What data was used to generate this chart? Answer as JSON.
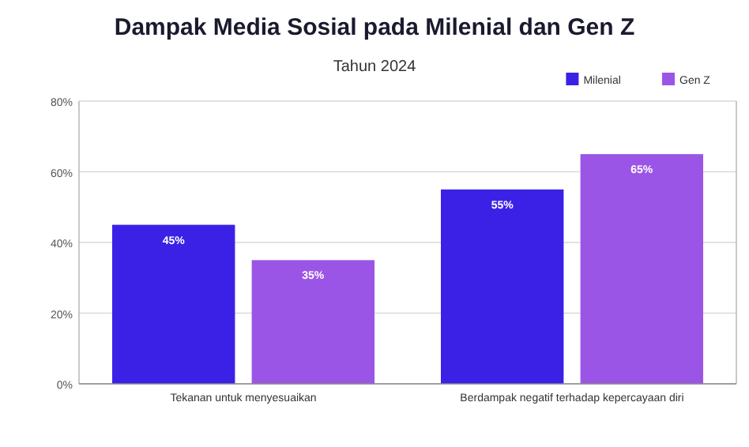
{
  "chart_data": {
    "type": "bar",
    "title": "Dampak Media Sosial pada Milenial dan Gen Z",
    "subtitle": "Tahun 2024",
    "categories": [
      "Tekanan untuk menyesuaikan",
      "Berdampak negatif terhadap kepercayaan diri"
    ],
    "series": [
      {
        "name": "Milenial",
        "color": "#3b21e6",
        "values": [
          45,
          55
        ],
        "value_labels": [
          "45%",
          "55%"
        ]
      },
      {
        "name": "Gen Z",
        "color": "#9b55e6",
        "values": [
          35,
          65
        ],
        "value_labels": [
          "35%",
          "65%"
        ]
      }
    ],
    "ylim": [
      0,
      80
    ],
    "yticks": [
      {
        "value": 0,
        "label": "0%"
      },
      {
        "value": 20,
        "label": "20%"
      },
      {
        "value": 40,
        "label": "40%"
      },
      {
        "value": 60,
        "label": "60%"
      },
      {
        "value": 80,
        "label": "80%"
      }
    ],
    "grid": "y",
    "legend": "top right"
  }
}
